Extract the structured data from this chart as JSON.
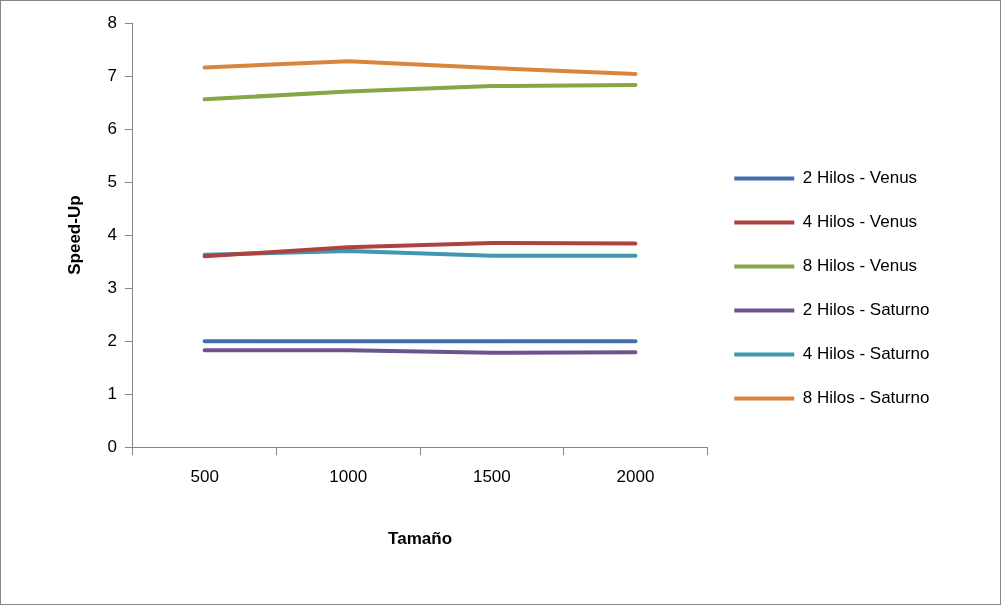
{
  "chart_data": {
    "type": "line",
    "xlabel": "Tamaño",
    "ylabel": "Speed-Up",
    "categories": [
      "500",
      "1000",
      "1500",
      "2000"
    ],
    "series": [
      {
        "name": "2 Hilos - Venus",
        "color": "#4270ad",
        "values": [
          2,
          2,
          2,
          2
        ]
      },
      {
        "name": "4 Hilos - Venus",
        "color": "#ac4340",
        "values": [
          3.6,
          3.77,
          3.85,
          3.84
        ]
      },
      {
        "name": "8 Hilos - Venus",
        "color": "#86a647",
        "values": [
          6.56,
          6.71,
          6.81,
          6.83
        ]
      },
      {
        "name": "2 Hilos - Saturno",
        "color": "#6e548d",
        "values": [
          1.83,
          1.83,
          1.78,
          1.79
        ]
      },
      {
        "name": "4 Hilos - Saturno",
        "color": "#3e98b1",
        "values": [
          3.63,
          3.7,
          3.61,
          3.61
        ]
      },
      {
        "name": "8 Hilos - Saturno",
        "color": "#db843d",
        "values": [
          7.16,
          7.28,
          7.15,
          7.04
        ]
      }
    ],
    "ylim": [
      0,
      8
    ],
    "yticks": [
      0,
      1,
      2,
      3,
      4,
      5,
      6,
      7,
      8
    ],
    "grid": false,
    "legend": "right",
    "marker": "none",
    "line_style": "solid"
  }
}
